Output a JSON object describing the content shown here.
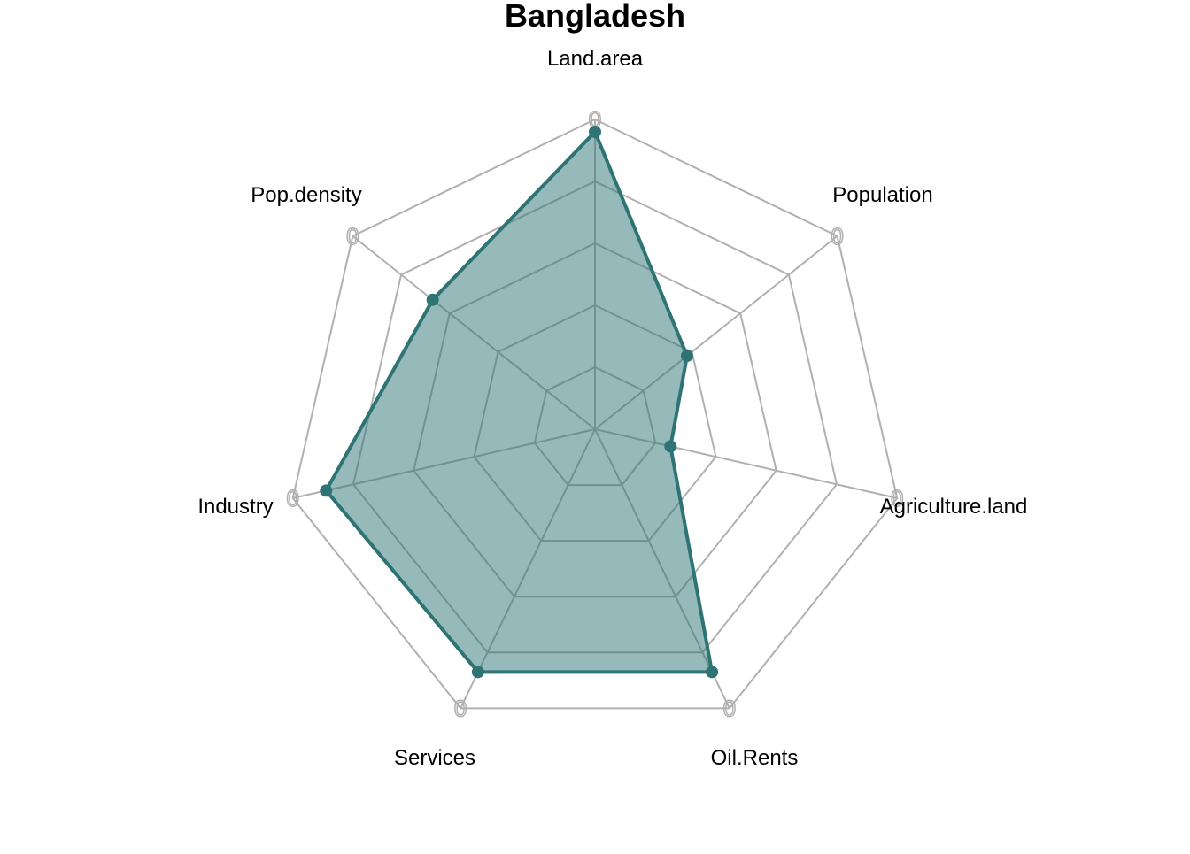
{
  "chart_data": {
    "type": "radar",
    "title": "Bangladesh",
    "axes": [
      "Land.area",
      "Population",
      "Agriculture.land",
      "Oil.Rents",
      "Services",
      "Industry",
      "Pop.density"
    ],
    "axis_max_label": "0",
    "range": [
      0,
      1
    ],
    "grid_levels": 5,
    "series": [
      {
        "values": [
          0.96,
          0.38,
          0.25,
          0.87,
          0.87,
          0.89,
          0.67
        ]
      }
    ],
    "colors": {
      "series_line": "#2e7474",
      "series_fill": "#2e7474",
      "grid": "#b0b0b0"
    }
  }
}
